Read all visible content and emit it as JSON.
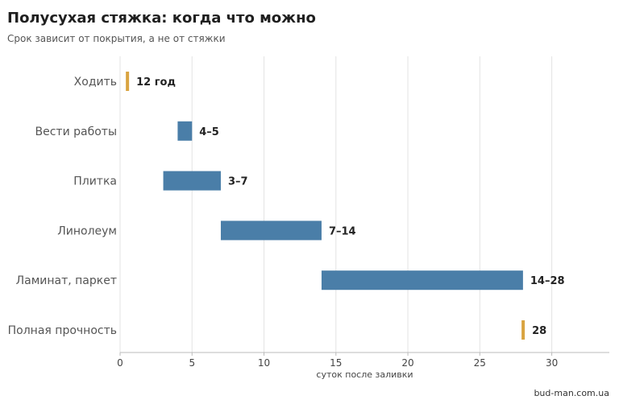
{
  "title": "Полусухая стяжка: когда что можно",
  "subtitle": "Срок зависит от покрытия, а не от стяжки",
  "source": "bud-man.com.ua",
  "colors": {
    "range": "#4a7ea8",
    "milestone": "#d9a441",
    "grid": "#e3e3e3",
    "axis": "#bbbbbb"
  },
  "chart_data": {
    "type": "bar",
    "orientation": "horizontal-range",
    "categories": [
      "Ходить",
      "Вести работы",
      "Плитка",
      "Линолеум",
      "Ламинат, паркет",
      "Полная прочность"
    ],
    "bars": [
      {
        "category": "Ходить",
        "start": 0.4,
        "end": 0.6,
        "label": "12 год",
        "kind": "milestone"
      },
      {
        "category": "Вести работы",
        "start": 4,
        "end": 5,
        "label": "4–5",
        "kind": "range"
      },
      {
        "category": "Плитка",
        "start": 3,
        "end": 7,
        "label": "3–7",
        "kind": "range"
      },
      {
        "category": "Линолеум",
        "start": 7,
        "end": 14,
        "label": "7–14",
        "kind": "range"
      },
      {
        "category": "Ламинат, паркет",
        "start": 14,
        "end": 28,
        "label": "14–28",
        "kind": "range"
      },
      {
        "category": "Полная прочность",
        "start": 27.9,
        "end": 28.1,
        "label": "28",
        "kind": "milestone"
      }
    ],
    "xlabel": "суток после заливки",
    "xlim": [
      0,
      34
    ],
    "xticks": [
      0,
      5,
      10,
      15,
      20,
      25,
      30
    ],
    "grid": "vertical"
  }
}
